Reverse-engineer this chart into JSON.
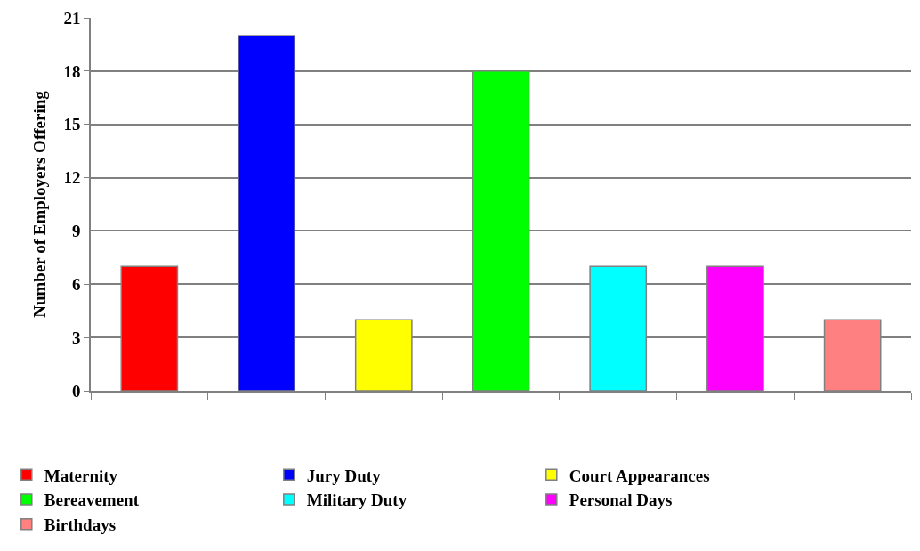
{
  "chart_data": {
    "type": "bar",
    "ylabel": "Number of Employers Offering",
    "categories": [
      null,
      null,
      null,
      null,
      null,
      null,
      null
    ],
    "series": [
      {
        "name": "Maternity",
        "color": "#ff0000",
        "values": [
          7,
          null,
          null,
          null,
          null,
          null,
          null
        ]
      },
      {
        "name": "Jury Duty",
        "color": "#0000ff",
        "values": [
          null,
          20,
          null,
          null,
          null,
          null,
          null
        ]
      },
      {
        "name": "Court Appearances",
        "color": "#ffff00",
        "values": [
          null,
          null,
          4,
          null,
          null,
          null,
          null
        ]
      },
      {
        "name": "Bereavement",
        "color": "#00ff00",
        "values": [
          null,
          null,
          null,
          18,
          null,
          null,
          null
        ]
      },
      {
        "name": "Military Duty",
        "color": "#00ffff",
        "values": [
          null,
          null,
          null,
          null,
          7,
          null,
          null
        ]
      },
      {
        "name": "Personal Days",
        "color": "#ff00ff",
        "values": [
          null,
          null,
          null,
          null,
          null,
          7,
          null
        ]
      },
      {
        "name": "Birthdays",
        "color": "#ff8080",
        "values": [
          null,
          null,
          null,
          null,
          null,
          null,
          4
        ]
      }
    ],
    "ylim": [
      0,
      21
    ],
    "yticks": [
      0,
      3,
      6,
      9,
      12,
      15,
      18,
      21
    ],
    "grid": "y",
    "legend": "bottom",
    "tick_labels": "y"
  }
}
